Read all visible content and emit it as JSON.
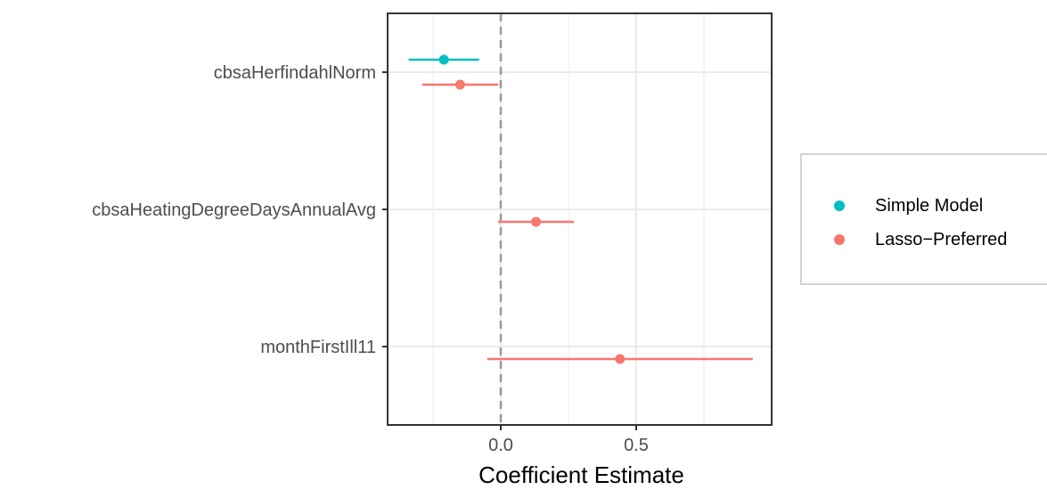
{
  "chart_data": {
    "type": "scatter",
    "title": "",
    "xlabel": "Coefficient Estimate",
    "ylabel": "",
    "xlim": [
      -0.3,
      0.92
    ],
    "x_ticks": [
      0.0,
      0.5
    ],
    "x_tick_labels": [
      "0.0",
      "0.5"
    ],
    "x_minor_ticks": [
      -0.25,
      0.25,
      0.75
    ],
    "categories": [
      "cbsaHerfindahlNorm",
      "cbsaHeatingDegreeDaysAnnualAvg",
      "monthFirstIll11"
    ],
    "grid": true,
    "zero_line": 0,
    "legend_position": "right",
    "series": [
      {
        "name": "Simple Model",
        "color": "#00BFC4",
        "points": [
          {
            "category": "cbsaHerfindahlNorm",
            "estimate": -0.21,
            "low": -0.34,
            "high": -0.08
          }
        ]
      },
      {
        "name": "Lasso−Preferred",
        "color": "#F8766D",
        "points": [
          {
            "category": "cbsaHerfindahlNorm",
            "estimate": -0.15,
            "low": -0.29,
            "high": -0.01
          },
          {
            "category": "cbsaHeatingDegreeDaysAnnualAvg",
            "estimate": 0.13,
            "low": -0.01,
            "high": 0.27
          },
          {
            "category": "monthFirstIll11",
            "estimate": 0.44,
            "low": -0.05,
            "high": 0.93
          }
        ]
      }
    ]
  }
}
